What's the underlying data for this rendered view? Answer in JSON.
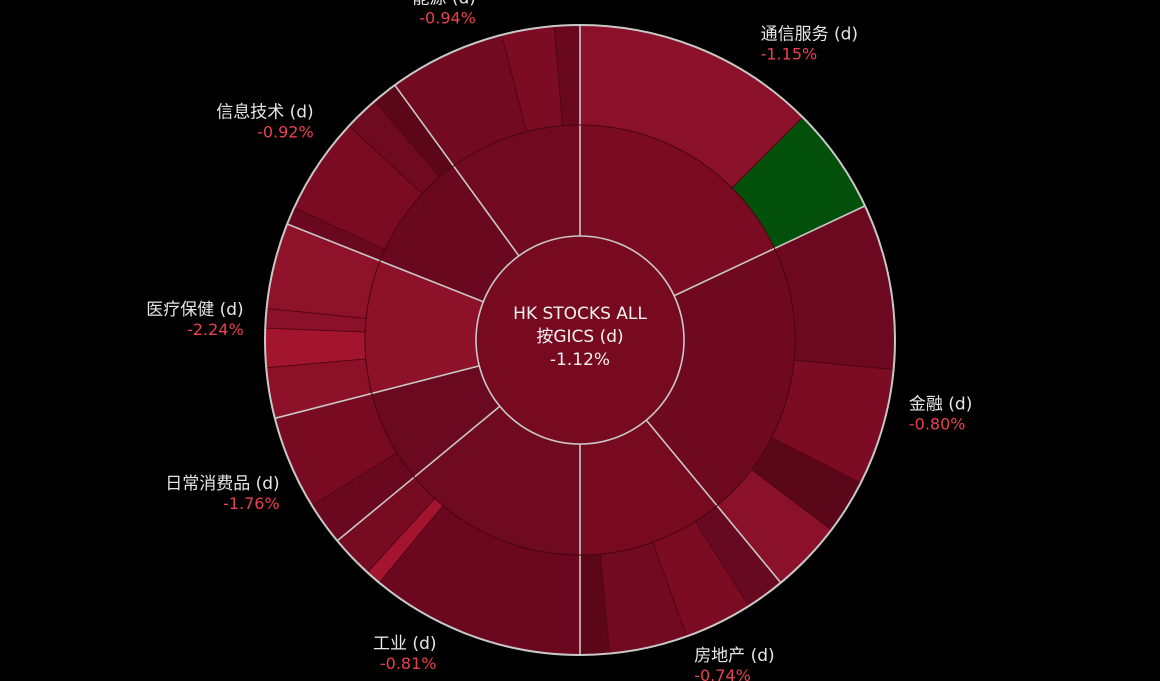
{
  "colors": {
    "background": "#000000",
    "label_text": "#e6e6e6",
    "negative_text": "#e8414f",
    "ring_stroke": "#c8c8c8",
    "positive_fill": "#03500b"
  },
  "chart_data": {
    "type": "sunburst",
    "title": "",
    "root": {
      "line1": "HK STOCKS ALL",
      "line2": "按GICS (d)",
      "change": "-1.12%",
      "color": "#780a20"
    },
    "sectors": [
      {
        "label": "通信服务 (d)",
        "change": "-1.15%",
        "weight": 18,
        "color": "#7a0b22",
        "children": [
          {
            "weight": 12.5,
            "color": "#8a1129"
          },
          {
            "weight": 5.5,
            "color": "#03500b"
          }
        ]
      },
      {
        "label": "金融 (d)",
        "change": "-0.80%",
        "weight": 21,
        "color": "#6f0920",
        "children": [
          {
            "weight": 8.5,
            "color": "#6c0820"
          },
          {
            "weight": 6.0,
            "color": "#7b0c23"
          },
          {
            "weight": 2.8,
            "color": "#5a071a"
          },
          {
            "weight": 3.7,
            "color": "#8a1129"
          }
        ]
      },
      {
        "label": "房地产 (d)",
        "change": "-0.74%",
        "weight": 11,
        "color": "#780a20",
        "children": [
          {
            "weight": 2.0,
            "color": "#670920"
          },
          {
            "weight": 3.5,
            "color": "#7c0c24"
          },
          {
            "weight": 4.0,
            "color": "#720a22"
          },
          {
            "weight": 1.5,
            "color": "#5c0719"
          }
        ]
      },
      {
        "label": "工业 (d)",
        "change": "-0.81%",
        "weight": 14,
        "color": "#700a20",
        "children": [
          {
            "weight": 11.0,
            "color": "#6b0820"
          },
          {
            "weight": 0.8,
            "color": "#a4142e"
          },
          {
            "weight": 2.2,
            "color": "#760b22"
          }
        ]
      },
      {
        "label": "日常消费品 (d)",
        "change": "-1.76%",
        "weight": 7,
        "color": "#6b0920",
        "children": [
          {
            "weight": 2.2,
            "color": "#6a0820"
          },
          {
            "weight": 4.8,
            "color": "#780b22"
          }
        ]
      },
      {
        "label": "医疗保健 (d)",
        "change": "-2.24%",
        "weight": 10,
        "color": "#8c1129",
        "children": [
          {
            "weight": 2.6,
            "color": "#8b1028"
          },
          {
            "weight": 2.0,
            "color": "#a3142e"
          },
          {
            "weight": 1.0,
            "color": "#8a1129"
          },
          {
            "weight": 4.4,
            "color": "#8e1229"
          }
        ]
      },
      {
        "label": "信息技术 (d)",
        "change": "-0.92%",
        "weight": 9,
        "color": "#6a081f",
        "children": [
          {
            "weight": 0.9,
            "color": "#6a081f"
          },
          {
            "weight": 5.0,
            "color": "#7a0b22"
          },
          {
            "weight": 1.8,
            "color": "#700a20"
          },
          {
            "weight": 1.3,
            "color": "#5c0719"
          }
        ]
      },
      {
        "label": "能源 (d)",
        "change": "-0.94%",
        "weight": 10,
        "color": "#710a21",
        "children": [
          {
            "weight": 6.0,
            "color": "#720a22"
          },
          {
            "weight": 2.7,
            "color": "#7c0c24"
          },
          {
            "weight": 1.3,
            "color": "#6a081f"
          }
        ]
      }
    ]
  }
}
